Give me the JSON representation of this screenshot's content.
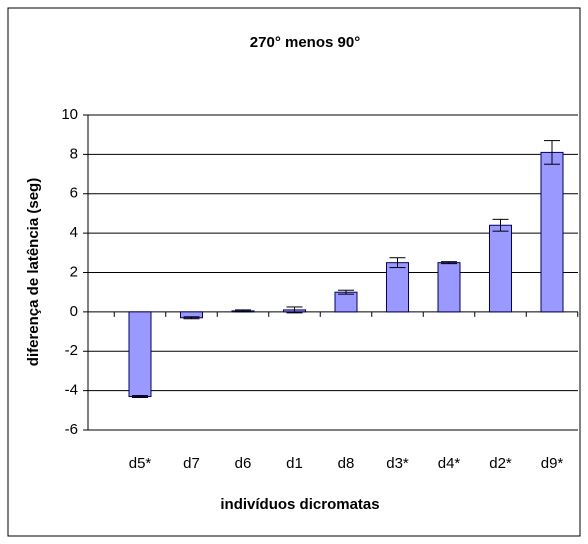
{
  "chart_data": {
    "type": "bar",
    "title": "270° menos 90°",
    "x_label": "indivíduos dicromatas",
    "y_label": "diferença de latência (seg)",
    "categories": [
      "d5*",
      "d7",
      "d6",
      "d1",
      "d8",
      "d3*",
      "d4*",
      "d2*",
      "d9*"
    ],
    "values": [
      -4.3,
      -0.3,
      0.05,
      0.1,
      1.0,
      2.5,
      2.5,
      4.4,
      8.1
    ],
    "errors": [
      0.05,
      0.05,
      0.05,
      0.15,
      0.1,
      0.25,
      0.05,
      0.3,
      0.6
    ],
    "color": "#9999ff",
    "ylim": [
      -6,
      10
    ],
    "yticks": [
      -6,
      -4,
      -2,
      0,
      2,
      4,
      6,
      8,
      10
    ],
    "grid": true
  }
}
